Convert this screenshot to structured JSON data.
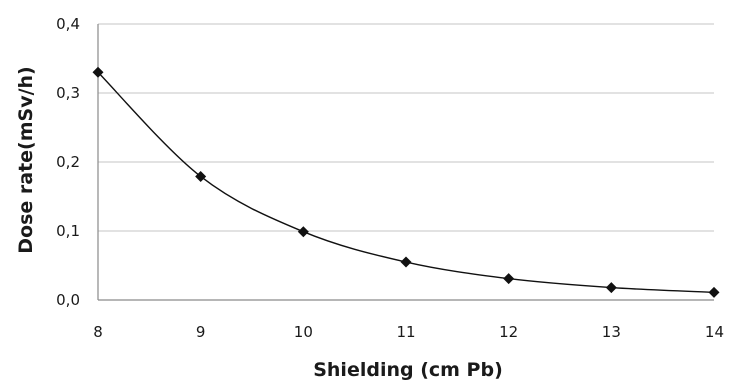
{
  "chart_data": {
    "type": "line",
    "xlabel": "Shielding (cm Pb)",
    "ylabel": "Dose rate(mSv/h)",
    "xlim": [
      8,
      14
    ],
    "ylim": [
      0,
      0.4
    ],
    "x_ticks": [
      "8",
      "9",
      "10",
      "11",
      "12",
      "13",
      "14"
    ],
    "y_ticks": [
      "0,0",
      "0,1",
      "0,2",
      "0,3",
      "0,4"
    ],
    "grid": "horizontal",
    "series": [
      {
        "x": [
          8,
          9,
          10,
          11,
          12,
          13,
          14
        ],
        "values": [
          0.33,
          0.179,
          0.099,
          0.055,
          0.031,
          0.018,
          0.011
        ]
      }
    ],
    "smooth": true,
    "marker": "diamond",
    "colors": {
      "line": "#111111",
      "grid": "#c4c4c4",
      "axis": "#8a8a8a"
    }
  }
}
